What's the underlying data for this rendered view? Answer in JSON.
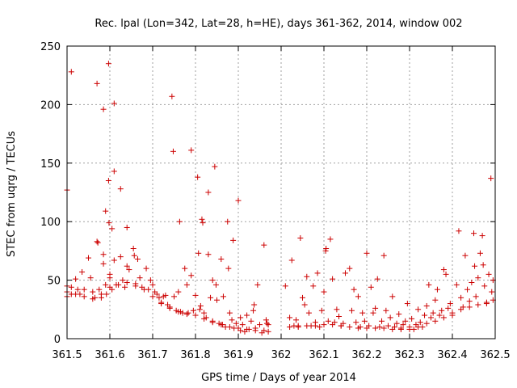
{
  "chart_data": {
    "type": "scatter",
    "title": "Rec. lpal (Lon=342, Lat=28, h=HE), days 361-362, 2014, window 002",
    "xlabel": "GPS time / Days of year 2014",
    "ylabel": "STEC from uqrg / TECUs",
    "xlim": [
      361.5,
      362.5
    ],
    "ylim": [
      0,
      250
    ],
    "grid": true,
    "marker": "+",
    "xticks": [
      361.5,
      361.6,
      361.7,
      361.8,
      361.9,
      362,
      362.1,
      362.2,
      362.3,
      362.4,
      362.5
    ],
    "xtick_labels": [
      "361.5",
      "361.6",
      "361.7",
      "361.8",
      "361.9",
      "362",
      "362.1",
      "362.2",
      "362.3",
      "362.4",
      "362.5"
    ],
    "yticks": [
      0,
      50,
      100,
      150,
      200,
      250
    ],
    "ytick_labels": [
      "0",
      "50",
      "100",
      "150",
      "200",
      "250"
    ],
    "series": [
      {
        "name": "STEC",
        "color": "#cc0000",
        "points": [
          [
            361.5,
            127
          ],
          [
            361.51,
            228
          ],
          [
            361.57,
            218
          ],
          [
            361.585,
            196
          ],
          [
            361.597,
            235
          ],
          [
            361.61,
            201
          ],
          [
            361.61,
            143
          ],
          [
            361.625,
            128
          ],
          [
            361.597,
            135
          ],
          [
            361.59,
            109
          ],
          [
            361.598,
            99
          ],
          [
            361.605,
            94
          ],
          [
            361.64,
            95
          ],
          [
            361.5,
            45
          ],
          [
            361.5,
            40
          ],
          [
            361.5,
            36
          ],
          [
            361.51,
            44
          ],
          [
            361.51,
            38
          ],
          [
            361.52,
            51
          ],
          [
            361.525,
            42
          ],
          [
            361.53,
            38
          ],
          [
            361.535,
            57
          ],
          [
            361.54,
            42
          ],
          [
            361.55,
            69
          ],
          [
            361.555,
            52
          ],
          [
            361.56,
            40
          ],
          [
            361.565,
            35
          ],
          [
            361.57,
            83
          ],
          [
            361.572,
            82
          ],
          [
            361.575,
            42
          ],
          [
            361.58,
            35
          ],
          [
            361.585,
            72
          ],
          [
            361.585,
            64
          ],
          [
            361.59,
            46
          ],
          [
            361.592,
            38
          ],
          [
            361.6,
            55
          ],
          [
            361.6,
            52
          ],
          [
            361.605,
            42
          ],
          [
            361.61,
            67
          ],
          [
            361.615,
            46
          ],
          [
            361.625,
            70
          ],
          [
            361.63,
            50
          ],
          [
            361.635,
            44
          ],
          [
            361.64,
            62
          ],
          [
            361.645,
            59
          ],
          [
            361.655,
            77
          ],
          [
            361.657,
            71
          ],
          [
            361.665,
            68
          ],
          [
            361.66,
            47
          ],
          [
            361.67,
            52
          ],
          [
            361.675,
            44
          ],
          [
            361.685,
            60
          ],
          [
            361.69,
            42
          ],
          [
            361.695,
            50
          ],
          [
            361.7,
            46
          ],
          [
            361.705,
            40
          ],
          [
            361.71,
            38
          ],
          [
            361.715,
            35
          ],
          [
            361.72,
            31
          ],
          [
            361.725,
            36
          ],
          [
            361.73,
            37
          ],
          [
            361.735,
            29
          ],
          [
            361.74,
            27
          ],
          [
            361.745,
            207
          ],
          [
            361.748,
            160
          ],
          [
            361.75,
            36
          ],
          [
            361.755,
            24
          ],
          [
            361.76,
            40
          ],
          [
            361.763,
            100
          ],
          [
            361.765,
            23
          ],
          [
            361.77,
            22
          ],
          [
            361.775,
            60
          ],
          [
            361.78,
            46
          ],
          [
            361.783,
            22
          ],
          [
            361.79,
            54
          ],
          [
            361.79,
            161
          ],
          [
            361.795,
            24
          ],
          [
            361.8,
            37
          ],
          [
            361.805,
            138
          ],
          [
            361.807,
            73
          ],
          [
            361.81,
            25
          ],
          [
            361.812,
            28
          ],
          [
            361.815,
            102
          ],
          [
            361.817,
            99
          ],
          [
            361.82,
            22
          ],
          [
            361.825,
            18
          ],
          [
            361.83,
            125
          ],
          [
            361.83,
            72
          ],
          [
            361.835,
            35
          ],
          [
            361.84,
            15
          ],
          [
            361.84,
            50
          ],
          [
            361.845,
            147
          ],
          [
            361.848,
            46
          ],
          [
            361.85,
            33
          ],
          [
            361.855,
            13
          ],
          [
            361.86,
            68
          ],
          [
            361.863,
            12
          ],
          [
            361.865,
            36
          ],
          [
            361.87,
            10
          ],
          [
            361.875,
            100
          ],
          [
            361.877,
            60
          ],
          [
            361.88,
            22
          ],
          [
            361.885,
            16
          ],
          [
            361.888,
            84
          ],
          [
            361.89,
            9
          ],
          [
            361.895,
            13
          ],
          [
            361.9,
            118
          ],
          [
            361.905,
            7
          ],
          [
            361.905,
            18
          ],
          [
            361.91,
            12
          ],
          [
            361.915,
            6
          ],
          [
            361.92,
            20
          ],
          [
            361.925,
            8
          ],
          [
            361.93,
            15
          ],
          [
            361.935,
            24
          ],
          [
            361.937,
            29
          ],
          [
            361.94,
            9
          ],
          [
            361.945,
            46
          ],
          [
            361.95,
            12
          ],
          [
            361.955,
            5
          ],
          [
            361.96,
            80
          ],
          [
            361.965,
            16
          ],
          [
            361.967,
            13
          ],
          [
            361.97,
            6
          ],
          [
            362.01,
            45
          ],
          [
            362.02,
            18
          ],
          [
            362.025,
            67
          ],
          [
            362.03,
            11
          ],
          [
            362.035,
            16
          ],
          [
            362.04,
            11
          ],
          [
            362.045,
            86
          ],
          [
            362.05,
            35
          ],
          [
            362.055,
            29
          ],
          [
            362.06,
            53
          ],
          [
            362.065,
            22
          ],
          [
            362.07,
            11
          ],
          [
            362.075,
            45
          ],
          [
            362.08,
            14
          ],
          [
            362.085,
            56
          ],
          [
            362.09,
            10
          ],
          [
            362.095,
            24
          ],
          [
            362.1,
            40
          ],
          [
            362.104,
            75
          ],
          [
            362.105,
            77
          ],
          [
            362.11,
            15
          ],
          [
            362.115,
            85
          ],
          [
            362.12,
            51
          ],
          [
            362.125,
            14
          ],
          [
            362.13,
            25
          ],
          [
            362.135,
            19
          ],
          [
            362.14,
            11
          ],
          [
            362.145,
            13
          ],
          [
            362.15,
            56
          ],
          [
            362.16,
            60
          ],
          [
            362.165,
            24
          ],
          [
            362.17,
            42
          ],
          [
            362.175,
            14
          ],
          [
            362.18,
            36
          ],
          [
            362.185,
            10
          ],
          [
            362.19,
            22
          ],
          [
            362.195,
            15
          ],
          [
            362.2,
            73
          ],
          [
            362.205,
            11
          ],
          [
            362.21,
            44
          ],
          [
            362.215,
            22
          ],
          [
            362.22,
            26
          ],
          [
            362.225,
            51
          ],
          [
            362.23,
            10
          ],
          [
            362.235,
            15
          ],
          [
            362.24,
            71
          ],
          [
            362.245,
            24
          ],
          [
            362.25,
            11
          ],
          [
            362.255,
            18
          ],
          [
            362.26,
            36
          ],
          [
            362.265,
            10
          ],
          [
            362.27,
            13
          ],
          [
            362.275,
            21
          ],
          [
            362.28,
            9
          ],
          [
            362.285,
            12
          ],
          [
            362.29,
            15
          ],
          [
            362.295,
            30
          ],
          [
            362.3,
            10
          ],
          [
            362.305,
            17
          ],
          [
            362.31,
            8
          ],
          [
            362.315,
            12
          ],
          [
            362.32,
            25
          ],
          [
            362.325,
            14
          ],
          [
            362.33,
            10
          ],
          [
            362.335,
            20
          ],
          [
            362.34,
            28
          ],
          [
            362.345,
            46
          ],
          [
            362.35,
            18
          ],
          [
            362.355,
            22
          ],
          [
            362.36,
            33
          ],
          [
            362.365,
            42
          ],
          [
            362.37,
            20
          ],
          [
            362.375,
            24
          ],
          [
            362.38,
            59
          ],
          [
            362.385,
            55
          ],
          [
            362.39,
            26
          ],
          [
            362.395,
            30
          ],
          [
            362.4,
            20
          ],
          [
            362.41,
            46
          ],
          [
            362.415,
            92
          ],
          [
            362.42,
            35
          ],
          [
            362.425,
            27
          ],
          [
            362.43,
            71
          ],
          [
            362.435,
            42
          ],
          [
            362.44,
            32
          ],
          [
            362.445,
            48
          ],
          [
            362.45,
            90
          ],
          [
            362.452,
            62
          ],
          [
            362.455,
            36
          ],
          [
            362.46,
            52
          ],
          [
            362.465,
            73
          ],
          [
            362.47,
            88
          ],
          [
            362.472,
            63
          ],
          [
            362.475,
            45
          ],
          [
            362.48,
            30
          ],
          [
            362.485,
            55
          ],
          [
            362.49,
            137
          ],
          [
            362.492,
            40
          ],
          [
            362.495,
            50
          ]
        ],
        "baseline_points": [
          [
            361.52,
            38
          ],
          [
            361.54,
            36
          ],
          [
            361.56,
            34
          ],
          [
            361.58,
            38
          ],
          [
            361.6,
            44
          ],
          [
            361.62,
            46
          ],
          [
            361.64,
            48
          ],
          [
            361.66,
            45
          ],
          [
            361.68,
            42
          ],
          [
            361.7,
            36
          ],
          [
            361.72,
            30
          ],
          [
            361.74,
            26
          ],
          [
            361.76,
            23
          ],
          [
            361.78,
            21
          ],
          [
            361.8,
            20
          ],
          [
            361.82,
            17
          ],
          [
            361.84,
            14
          ],
          [
            361.86,
            12
          ],
          [
            361.88,
            10
          ],
          [
            361.9,
            9
          ],
          [
            361.92,
            8
          ],
          [
            361.94,
            7
          ],
          [
            361.96,
            7
          ],
          [
            361.97,
            12
          ],
          [
            362.02,
            10
          ],
          [
            362.04,
            10
          ],
          [
            362.06,
            11
          ],
          [
            362.08,
            11
          ],
          [
            362.1,
            12
          ],
          [
            362.12,
            12
          ],
          [
            362.14,
            11
          ],
          [
            362.16,
            10
          ],
          [
            362.18,
            9
          ],
          [
            362.2,
            9
          ],
          [
            362.22,
            9
          ],
          [
            362.24,
            9
          ],
          [
            362.26,
            8
          ],
          [
            362.28,
            8
          ],
          [
            362.3,
            8
          ],
          [
            362.32,
            10
          ],
          [
            362.34,
            13
          ],
          [
            362.36,
            15
          ],
          [
            362.38,
            18
          ],
          [
            362.4,
            22
          ],
          [
            362.42,
            25
          ],
          [
            362.44,
            27
          ],
          [
            362.46,
            29
          ],
          [
            362.48,
            31
          ],
          [
            362.495,
            33
          ]
        ]
      }
    ]
  }
}
